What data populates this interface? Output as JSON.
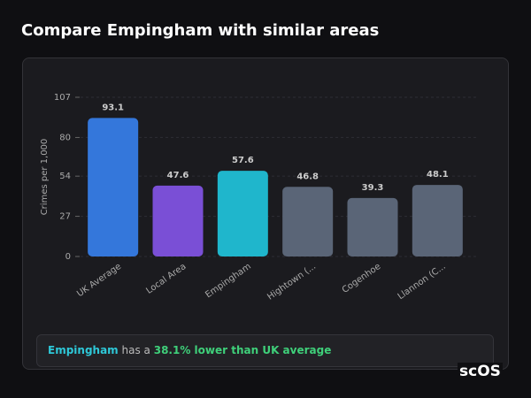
{
  "page_title": "Compare Empingham with similar areas",
  "chart_data": {
    "type": "bar",
    "y_label": "Crimes per 1,000",
    "categories": [
      "UK Average",
      "Local Area",
      "Empingham",
      "Hightown (...",
      "Cogenhoe",
      "Llannon (C..."
    ],
    "values": [
      93.1,
      47.6,
      57.6,
      46.8,
      39.3,
      48.1
    ],
    "colors": [
      "#3477db",
      "#7a4fd6",
      "#1fb6cc",
      "#5a6577",
      "#5a6577",
      "#5a6577"
    ],
    "ylim": [
      0,
      107
    ],
    "yticks": [
      0,
      27,
      54,
      80,
      107
    ],
    "grid": true
  },
  "note": {
    "area": "Empingham",
    "middle": "has a",
    "highlight": "38.1% lower than UK average"
  },
  "logo": "scOS"
}
